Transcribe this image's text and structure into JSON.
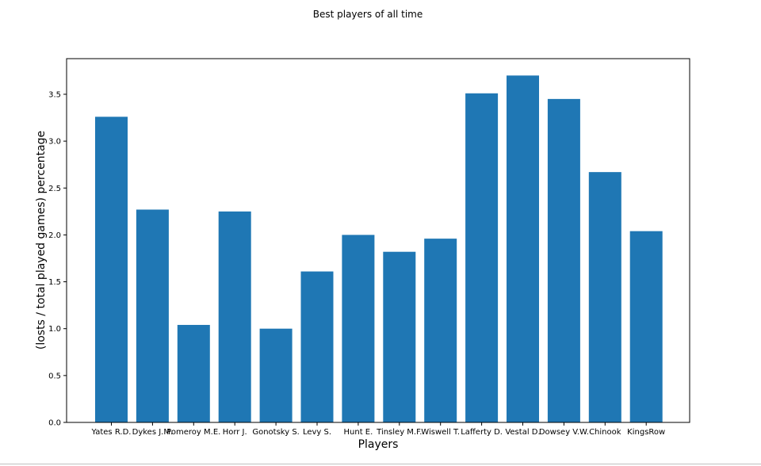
{
  "chart_data": {
    "type": "bar",
    "title": "Best players of all time",
    "xlabel": "Players",
    "ylabel": "(losts / total played games) percentage",
    "categories": [
      "Yates R.D.",
      "Dykes J.M.",
      "Pomeroy M.E.",
      "Horr J.",
      "Gonotsky S.",
      "Levy S.",
      "Hunt E.",
      "Tinsley M.F.",
      "Wiswell T.",
      "Lafferty D.",
      "Vestal D.",
      "Dowsey V.W.",
      "Chinook",
      "KingsRow"
    ],
    "values": [
      3.26,
      2.27,
      1.04,
      2.25,
      1.0,
      1.61,
      2.0,
      1.82,
      1.96,
      3.51,
      3.7,
      3.45,
      2.67,
      2.04
    ],
    "ylim": [
      0,
      3.88
    ],
    "yticks": [
      0.0,
      0.5,
      1.0,
      1.5,
      2.0,
      2.5,
      3.0,
      3.5
    ],
    "ytick_labels": [
      "0.0",
      "0.5",
      "1.0",
      "1.5",
      "2.0",
      "2.5",
      "3.0",
      "3.5"
    ],
    "bar_color": "#1f77b4",
    "grid": false,
    "legend": "none"
  }
}
